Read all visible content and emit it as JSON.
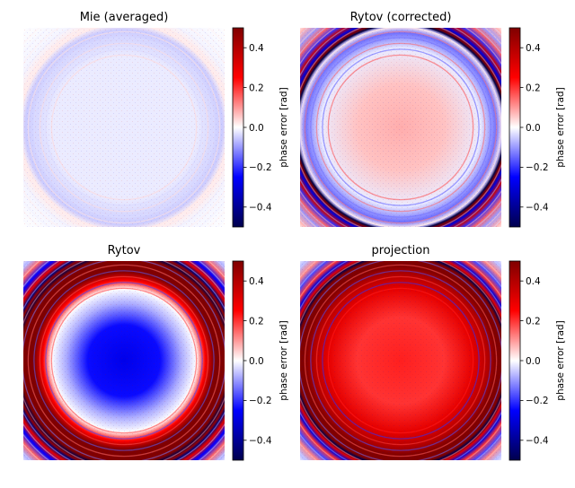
{
  "chart_data": [
    {
      "type": "heatmap",
      "title": "Mie (averaged)",
      "colorbar": {
        "label": "phase error [rad]",
        "range": [
          -0.5,
          0.5
        ],
        "ticks": [
          -0.4,
          -0.2,
          0.0,
          0.2,
          0.4
        ],
        "tick_labels": [
          "−0.4",
          "−0.2",
          "0.0",
          "0.2",
          "0.4"
        ],
        "colormap": "seismic"
      },
      "description_values": {
        "inner": -0.02,
        "edge": -0.05,
        "ring_amplitude": 0.0,
        "ripple": 0.04
      }
    },
    {
      "type": "heatmap",
      "title": "Rytov (corrected)",
      "colorbar": {
        "label": "phase error [rad]",
        "range": [
          -0.5,
          0.5
        ],
        "ticks": [
          -0.4,
          -0.2,
          0.0,
          0.2,
          0.4
        ],
        "tick_labels": [
          "−0.4",
          "−0.2",
          "0.0",
          "0.2",
          "0.4"
        ],
        "colormap": "seismic"
      },
      "description_values": {
        "inner": 0.08,
        "edge": -0.1,
        "ring_amplitude": 0.5,
        "ripple": 0.18
      }
    },
    {
      "type": "heatmap",
      "title": "Rytov",
      "colorbar": {
        "label": "phase error [rad]",
        "range": [
          -0.5,
          0.5
        ],
        "ticks": [
          -0.4,
          -0.2,
          0.0,
          0.2,
          0.4
        ],
        "tick_labels": [
          "−0.4",
          "−0.2",
          "0.0",
          "0.2",
          "0.4"
        ],
        "colormap": "seismic"
      },
      "description_values": {
        "inner": -0.28,
        "edge": 0.5,
        "ring_amplitude": 0.5,
        "ripple": 0.2
      }
    },
    {
      "type": "heatmap",
      "title": "projection",
      "colorbar": {
        "label": "phase error [rad]",
        "range": [
          -0.5,
          0.5
        ],
        "ticks": [
          -0.4,
          -0.2,
          0.0,
          0.2,
          0.4
        ],
        "tick_labels": [
          "−0.4",
          "−0.2",
          "0.0",
          "0.2",
          "0.4"
        ],
        "colormap": "seismic"
      },
      "description_values": {
        "inner": 0.22,
        "edge": 0.5,
        "ring_amplitude": 0.4,
        "ripple": 0.22
      }
    }
  ]
}
